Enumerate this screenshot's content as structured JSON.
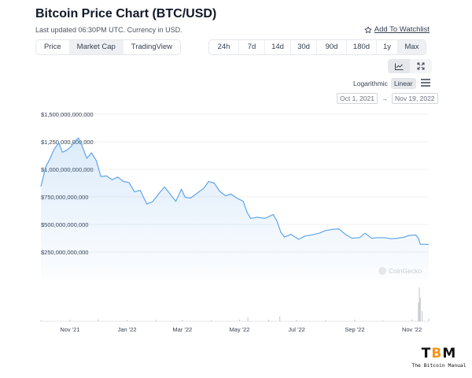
{
  "header": {
    "title": "Bitcoin Price Chart (BTC/USD)",
    "subtitle": "Last updated 06:30PM UTC. Currency in USD.",
    "watchlist_label": "Add To Watchlist"
  },
  "view_tabs": [
    "Price",
    "Market Cap",
    "TradingView"
  ],
  "active_view": "Market Cap",
  "ranges": [
    "24h",
    "7d",
    "14d",
    "30d",
    "90d",
    "180d",
    "1y",
    "Max"
  ],
  "active_range": "Max",
  "chart_tools": {
    "line_icon": "line-chart-icon",
    "expand_icon": "expand-icon",
    "active": "line-chart-icon"
  },
  "scale": {
    "options": [
      "Logarithmic",
      "Linear"
    ],
    "active": "Linear",
    "menu_icon": "hamburger-menu-icon"
  },
  "date_range": {
    "from": "Oct 1, 2021",
    "arrow": "→",
    "to": "Nov 19, 2022"
  },
  "watermark": "CoinGecko",
  "logo": {
    "mark": "TBM",
    "tagline": "The Bitcoin Manual",
    "accent_color": "#f7931a"
  },
  "chart_data": {
    "type": "area",
    "title": "",
    "xlabel": "",
    "ylabel": "",
    "line_color": "#60a5e8",
    "ylim": [
      0,
      1500000000000
    ],
    "y_ticks": [
      "$250,000,000,000",
      "$500,000,000,000",
      "$750,000,000,000",
      "$1,000,000,000,000",
      "$1,250,000,000,000",
      "$1,500,000,000,000"
    ],
    "y_tick_values": [
      250000000000,
      500000000000,
      750000000000,
      1000000000000,
      1250000000000,
      1500000000000
    ],
    "x_ticks": [
      "Nov '21",
      "Jan '22",
      "Mar '22",
      "May '22",
      "Jul '22",
      "Sep '22",
      "Nov '22"
    ],
    "x_tick_values": [
      "2021-11-01",
      "2022-01-01",
      "2022-03-01",
      "2022-05-01",
      "2022-07-01",
      "2022-09-01",
      "2022-11-01"
    ],
    "xlim": [
      "2021-10-01",
      "2022-11-19"
    ],
    "series": [
      {
        "x": [
          "2021-10-01",
          "2021-10-06",
          "2021-10-10",
          "2021-10-15",
          "2021-10-20",
          "2021-10-24",
          "2021-10-28",
          "2021-11-02",
          "2021-11-06",
          "2021-11-10",
          "2021-11-14",
          "2021-11-19",
          "2021-11-24",
          "2021-11-29",
          "2021-12-04",
          "2021-12-10",
          "2021-12-16",
          "2021-12-22",
          "2021-12-28",
          "2022-01-03",
          "2022-01-09",
          "2022-01-15",
          "2022-01-22",
          "2022-01-28",
          "2022-02-05",
          "2022-02-10",
          "2022-02-16",
          "2022-02-22",
          "2022-02-28",
          "2022-03-04",
          "2022-03-10",
          "2022-03-17",
          "2022-03-24",
          "2022-03-29",
          "2022-04-04",
          "2022-04-10",
          "2022-04-16",
          "2022-04-22",
          "2022-04-28",
          "2022-05-05",
          "2022-05-09",
          "2022-05-13",
          "2022-05-20",
          "2022-05-28",
          "2022-06-06",
          "2022-06-10",
          "2022-06-14",
          "2022-06-18",
          "2022-06-25",
          "2022-07-03",
          "2022-07-10",
          "2022-07-17",
          "2022-07-25",
          "2022-08-01",
          "2022-08-08",
          "2022-08-15",
          "2022-08-22",
          "2022-08-29",
          "2022-09-06",
          "2022-09-12",
          "2022-09-19",
          "2022-09-26",
          "2022-10-03",
          "2022-10-10",
          "2022-10-17",
          "2022-10-24",
          "2022-10-29",
          "2022-11-05",
          "2022-11-08",
          "2022-11-10",
          "2022-11-14",
          "2022-11-19"
        ],
        "y": [
          845000000000,
          1020000000000,
          1085000000000,
          1180000000000,
          1240000000000,
          1155000000000,
          1170000000000,
          1205000000000,
          1250000000000,
          1285000000000,
          1210000000000,
          1100000000000,
          1150000000000,
          1080000000000,
          935000000000,
          940000000000,
          905000000000,
          930000000000,
          890000000000,
          880000000000,
          795000000000,
          810000000000,
          685000000000,
          705000000000,
          790000000000,
          840000000000,
          775000000000,
          710000000000,
          820000000000,
          745000000000,
          740000000000,
          785000000000,
          830000000000,
          890000000000,
          875000000000,
          800000000000,
          760000000000,
          775000000000,
          740000000000,
          710000000000,
          610000000000,
          555000000000,
          565000000000,
          555000000000,
          590000000000,
          530000000000,
          430000000000,
          385000000000,
          410000000000,
          365000000000,
          395000000000,
          405000000000,
          420000000000,
          445000000000,
          455000000000,
          460000000000,
          410000000000,
          375000000000,
          380000000000,
          420000000000,
          375000000000,
          380000000000,
          380000000000,
          370000000000,
          375000000000,
          385000000000,
          400000000000,
          405000000000,
          375000000000,
          320000000000,
          320000000000,
          318000000000
        ]
      }
    ],
    "volume": {
      "x": [
        "2021-10-01",
        "2021-11-01",
        "2021-12-01",
        "2022-01-01",
        "2022-02-01",
        "2022-03-01",
        "2022-04-01",
        "2022-05-01",
        "2022-05-10",
        "2022-06-01",
        "2022-06-13",
        "2022-07-01",
        "2022-08-01",
        "2022-09-01",
        "2022-10-01",
        "2022-11-01",
        "2022-11-08",
        "2022-11-09",
        "2022-11-10",
        "2022-11-12",
        "2022-11-19"
      ],
      "y": [
        0.04,
        0.05,
        0.06,
        0.04,
        0.05,
        0.04,
        0.03,
        0.05,
        0.12,
        0.05,
        0.14,
        0.04,
        0.04,
        0.05,
        0.03,
        0.06,
        0.55,
        1.0,
        0.7,
        0.3,
        0.08
      ]
    },
    "grid": true,
    "legend": "none"
  }
}
